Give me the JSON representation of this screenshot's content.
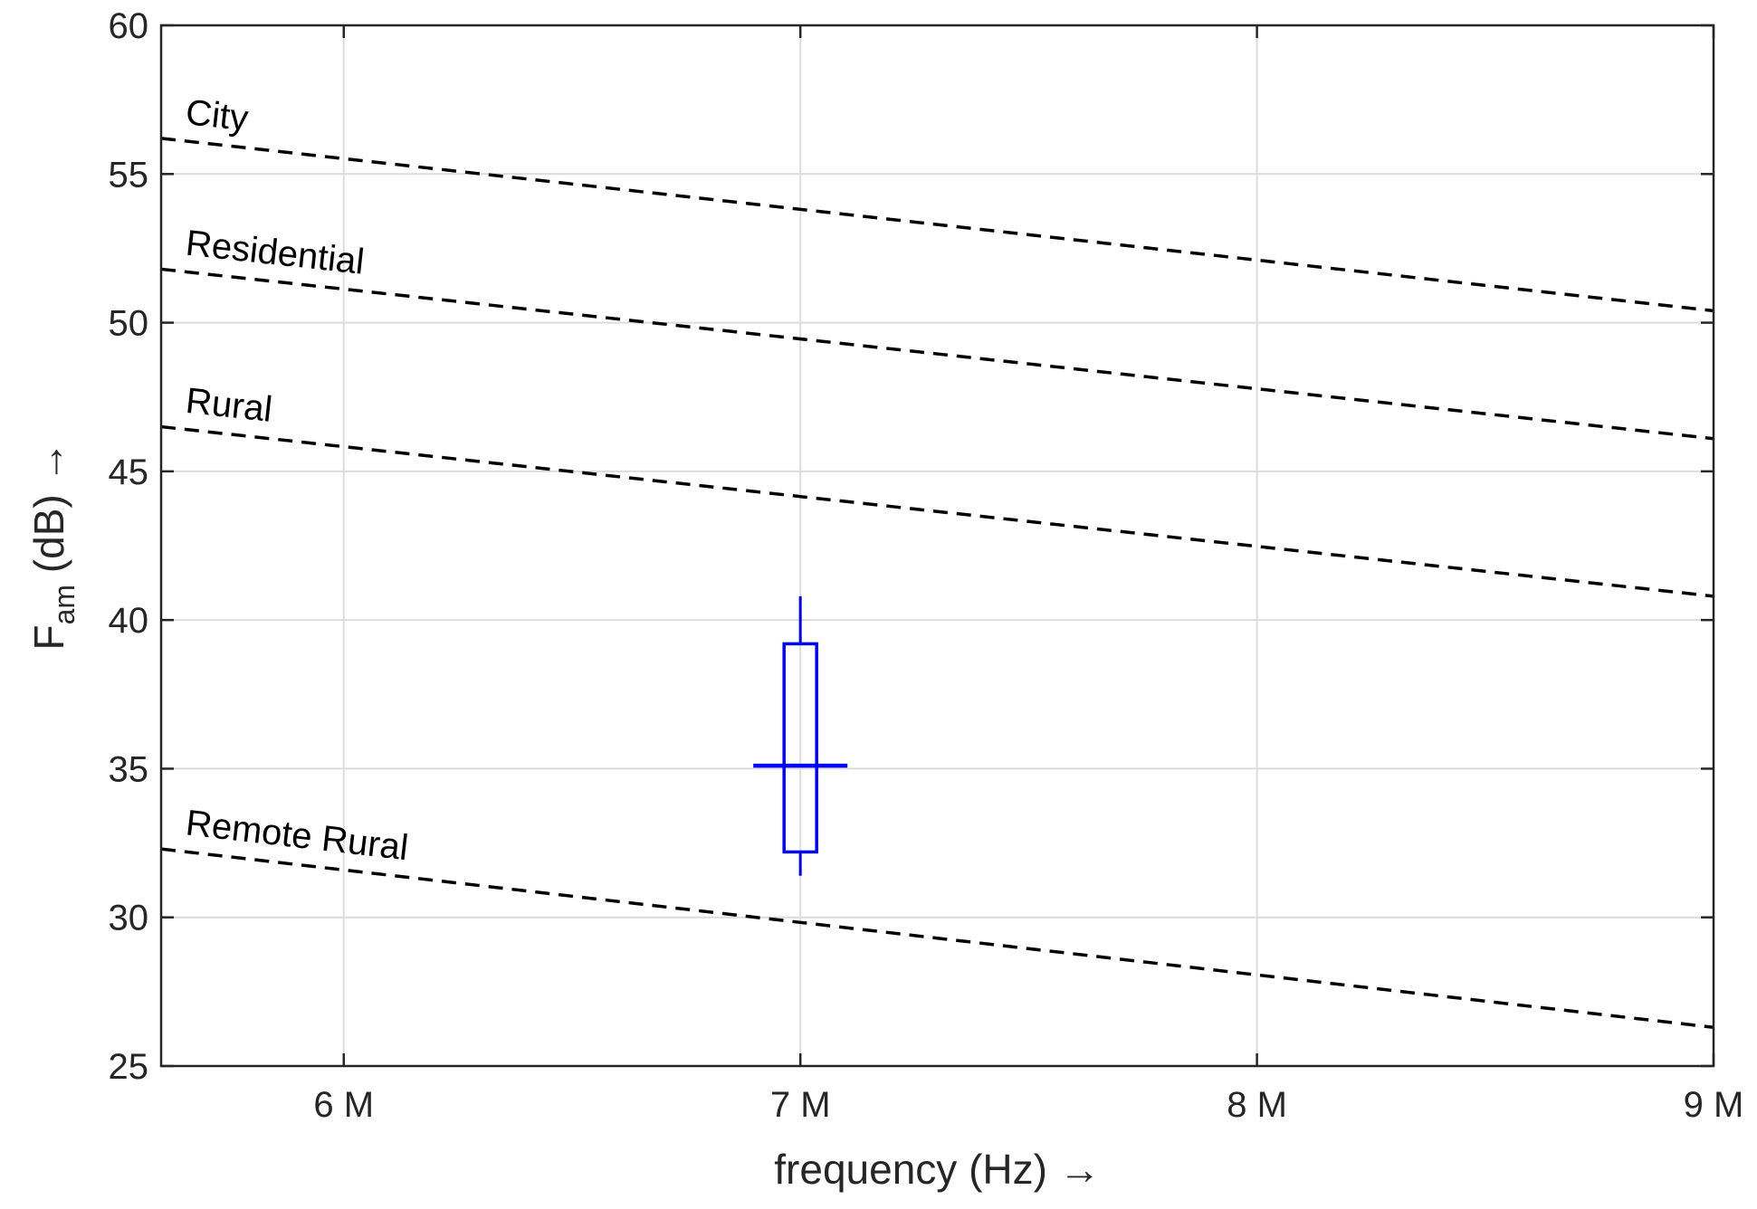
{
  "chart_data": {
    "type": "line",
    "xlabel": "frequency (Hz) →",
    "ylabel": {
      "main": "F",
      "sub": "am",
      "rest": " (dB) →"
    },
    "xlim": [
      5600000,
      9000000
    ],
    "ylim": [
      25,
      60
    ],
    "x_ticks": [
      {
        "value": 6000000,
        "label": "6 M"
      },
      {
        "value": 7000000,
        "label": "7 M"
      },
      {
        "value": 8000000,
        "label": "8 M"
      },
      {
        "value": 9000000,
        "label": "9 M"
      }
    ],
    "y_ticks": [
      {
        "value": 25,
        "label": "25"
      },
      {
        "value": 30,
        "label": "30"
      },
      {
        "value": 35,
        "label": "35"
      },
      {
        "value": 40,
        "label": "40"
      },
      {
        "value": 45,
        "label": "45"
      },
      {
        "value": 50,
        "label": "50"
      },
      {
        "value": 55,
        "label": "55"
      },
      {
        "value": 60,
        "label": "60"
      }
    ],
    "grid": true,
    "series": [
      {
        "name": "City",
        "style": "dashed",
        "color": "#000000",
        "x": [
          5600000,
          9000000
        ],
        "y": [
          56.2,
          50.4
        ]
      },
      {
        "name": "Residential",
        "style": "dashed",
        "color": "#000000",
        "x": [
          5600000,
          9000000
        ],
        "y": [
          51.8,
          46.1
        ]
      },
      {
        "name": "Rural",
        "style": "dashed",
        "color": "#000000",
        "x": [
          5600000,
          9000000
        ],
        "y": [
          46.5,
          40.8
        ]
      },
      {
        "name": "Remote Rural",
        "style": "dashed",
        "color": "#000000",
        "x": [
          5600000,
          9000000
        ],
        "y": [
          32.3,
          26.3
        ]
      }
    ],
    "boxplot": {
      "color": "#0000ff",
      "x": 7000000,
      "whisker_low": 31.4,
      "q1": 32.2,
      "median": 35.1,
      "q3": 39.2,
      "whisker_high": 40.8
    }
  }
}
